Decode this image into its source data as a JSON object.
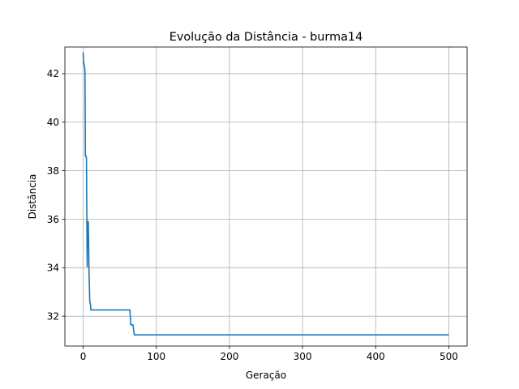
{
  "chart_data": {
    "type": "line",
    "title": "Evolução da Distância - burma14",
    "xlabel": "Geração",
    "ylabel": "Distância",
    "xlim": [
      -25,
      525
    ],
    "ylim": [
      30.77,
      43.1
    ],
    "xticks": [
      0,
      100,
      200,
      300,
      400,
      500
    ],
    "yticks": [
      32,
      34,
      36,
      38,
      40,
      42
    ],
    "grid": true,
    "series": [
      {
        "color": "#1f77b4",
        "points": [
          [
            0,
            42.88
          ],
          [
            0.5,
            42.45
          ],
          [
            1,
            42.45
          ],
          [
            1.5,
            42.3
          ],
          [
            2,
            42.3
          ],
          [
            2.5,
            42.05
          ],
          [
            3,
            38.6
          ],
          [
            4,
            38.6
          ],
          [
            4.5,
            38.5
          ],
          [
            5,
            36.4
          ],
          [
            5.5,
            34.05
          ],
          [
            6,
            35.9
          ],
          [
            7,
            35.9
          ],
          [
            7.5,
            35.0
          ],
          [
            8,
            33.9
          ],
          [
            9,
            32.6
          ],
          [
            10,
            32.5
          ],
          [
            10.5,
            32.26
          ],
          [
            20,
            32.26
          ],
          [
            64,
            32.26
          ],
          [
            65,
            31.65
          ],
          [
            68,
            31.65
          ],
          [
            70,
            31.23
          ],
          [
            100,
            31.23
          ],
          [
            500,
            31.23
          ]
        ]
      }
    ]
  }
}
